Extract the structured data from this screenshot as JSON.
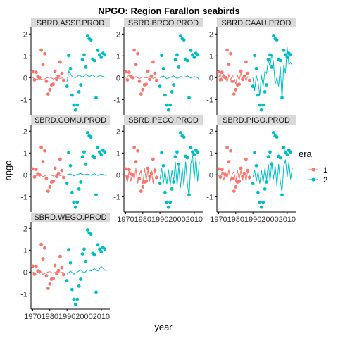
{
  "chart_data": {
    "type": "scatter",
    "title": "NPGO: Region Farallon seabirds",
    "xlabel": "year",
    "ylabel": "npgo",
    "xlim": [
      1969,
      2015
    ],
    "ylim": [
      -1.7,
      2.3
    ],
    "x_ticks": [
      1970,
      1980,
      1990,
      2000,
      2010
    ],
    "y_ticks": [
      -1,
      0,
      1,
      2
    ],
    "legend": {
      "title": "era",
      "position": "right",
      "entries": [
        {
          "label": "1",
          "color": "#F8766D"
        },
        {
          "label": "2",
          "color": "#00BFC4"
        }
      ]
    },
    "colors": {
      "era1": "#F8766D",
      "era2": "#00BFC4",
      "strip": "#D9D9D9"
    },
    "points": {
      "era1": [
        [
          1970,
          0.27
        ],
        [
          1971,
          -0.1
        ],
        [
          1972,
          0.25
        ],
        [
          1973,
          0.05
        ],
        [
          1974,
          0.0
        ],
        [
          1975,
          1.26
        ],
        [
          1976,
          0.6
        ],
        [
          1977,
          1.1
        ],
        [
          1978,
          -0.17
        ],
        [
          1979,
          -0.75
        ],
        [
          1980,
          -0.55
        ],
        [
          1981,
          -0.33
        ],
        [
          1982,
          -0.3
        ],
        [
          1983,
          0.3
        ],
        [
          1984,
          -0.08
        ],
        [
          1985,
          0.07
        ],
        [
          1986,
          0.72
        ],
        [
          1987,
          0.2
        ],
        [
          1988,
          -0.12
        ]
      ],
      "era2": [
        [
          1990,
          -0.4
        ],
        [
          1991,
          1.02
        ],
        [
          1992,
          0.42
        ],
        [
          1993,
          -0.8
        ],
        [
          1994,
          -1.25
        ],
        [
          1995,
          -1.48
        ],
        [
          1996,
          -1.25
        ],
        [
          1997,
          -0.65
        ],
        [
          1998,
          -0.33
        ],
        [
          1999,
          0.83
        ],
        [
          2000,
          1.05
        ],
        [
          2001,
          0.48
        ],
        [
          2002,
          1.93
        ],
        [
          2003,
          1.78
        ],
        [
          2004,
          1.73
        ],
        [
          2005,
          0.85
        ],
        [
          2006,
          0.78
        ],
        [
          2007,
          -0.92
        ],
        [
          2008,
          1.25
        ],
        [
          2009,
          1.05
        ],
        [
          2010,
          0.93
        ],
        [
          2011,
          1.12
        ],
        [
          2012,
          1.05
        ]
      ]
    },
    "panels": [
      {
        "label": "SBRD.ASSP.PROD",
        "line1": [
          [
            1970,
            0.0
          ],
          [
            1972,
            -0.08
          ],
          [
            1974,
            -0.05
          ],
          [
            1976,
            -0.1
          ],
          [
            1978,
            -0.02
          ],
          [
            1980,
            0.02
          ],
          [
            1982,
            -0.06
          ],
          [
            1984,
            0.01
          ],
          [
            1986,
            -0.04
          ],
          [
            1988,
            0.0
          ]
        ],
        "line2": [
          [
            1990,
            -0.2
          ],
          [
            1991,
            0.3
          ],
          [
            1993,
            0.05
          ],
          [
            1995,
            0.0
          ],
          [
            1997,
            0.12
          ],
          [
            1999,
            0.02
          ],
          [
            2001,
            0.15
          ],
          [
            2003,
            0.05
          ],
          [
            2005,
            0.12
          ],
          [
            2007,
            0.0
          ],
          [
            2009,
            0.1
          ],
          [
            2011,
            0.05
          ],
          [
            2013,
            0.0
          ]
        ]
      },
      {
        "label": "SBRD.BRCO.PROD",
        "line1": [
          [
            1970,
            0.0
          ],
          [
            1972,
            0.1
          ],
          [
            1974,
            -0.05
          ],
          [
            1976,
            0.05
          ],
          [
            1978,
            -0.05
          ],
          [
            1980,
            0.03
          ],
          [
            1982,
            -0.02
          ],
          [
            1984,
            0.04
          ],
          [
            1986,
            -0.03
          ],
          [
            1988,
            0.0
          ]
        ],
        "line2": [
          [
            1990,
            0.0
          ],
          [
            1992,
            0.08
          ],
          [
            1994,
            -0.05
          ],
          [
            1996,
            0.02
          ],
          [
            1998,
            0.08
          ],
          [
            2000,
            -0.04
          ],
          [
            2002,
            0.05
          ],
          [
            2004,
            0.02
          ],
          [
            2006,
            0.08
          ],
          [
            2008,
            -0.02
          ],
          [
            2010,
            0.05
          ],
          [
            2012,
            0.0
          ],
          [
            2013,
            -0.1
          ]
        ]
      },
      {
        "label": "SBRD.CAAU.PROD",
        "line1": [
          [
            1970,
            0.0
          ],
          [
            1971,
            0.2
          ],
          [
            1972,
            -0.15
          ],
          [
            1973,
            0.15
          ],
          [
            1974,
            0.0
          ],
          [
            1975,
            -0.2
          ],
          [
            1976,
            0.15
          ],
          [
            1977,
            -0.1
          ],
          [
            1978,
            0.1
          ],
          [
            1979,
            0.0
          ],
          [
            1980,
            -0.3
          ],
          [
            1981,
            0.1
          ],
          [
            1982,
            -0.1
          ],
          [
            1983,
            0.2
          ],
          [
            1984,
            -0.05
          ],
          [
            1985,
            0.1
          ],
          [
            1986,
            -0.15
          ],
          [
            1987,
            0.05
          ],
          [
            1988,
            0.0
          ]
        ],
        "line2": [
          [
            1990,
            0.0
          ],
          [
            1991,
            -0.6
          ],
          [
            1992,
            0.1
          ],
          [
            1993,
            -0.2
          ],
          [
            1994,
            -0.8
          ],
          [
            1995,
            0.1
          ],
          [
            1996,
            -0.4
          ],
          [
            1997,
            0.3
          ],
          [
            1998,
            0.2
          ],
          [
            1999,
            0.8
          ],
          [
            2000,
            0.5
          ],
          [
            2001,
            1.1
          ],
          [
            2002,
            0.7
          ],
          [
            2003,
            -0.3
          ],
          [
            2004,
            0.0
          ],
          [
            2005,
            -0.4
          ],
          [
            2006,
            0.5
          ],
          [
            2007,
            -1.0
          ],
          [
            2008,
            0.6
          ],
          [
            2009,
            0.2
          ],
          [
            2010,
            1.4
          ],
          [
            2011,
            0.6
          ],
          [
            2012,
            0.7
          ],
          [
            2013,
            0.55
          ]
        ]
      },
      {
        "label": "SBRD.COMU.PROD",
        "line1": [
          [
            1970,
            0.0
          ],
          [
            1972,
            -0.05
          ],
          [
            1974,
            0.02
          ],
          [
            1976,
            -0.08
          ],
          [
            1978,
            -0.02
          ],
          [
            1980,
            0.0
          ],
          [
            1982,
            -0.05
          ],
          [
            1984,
            0.02
          ],
          [
            1986,
            -0.04
          ],
          [
            1988,
            0.0
          ]
        ],
        "line2": [
          [
            1990,
            0.0
          ],
          [
            1992,
            0.05
          ],
          [
            1994,
            -0.05
          ],
          [
            1996,
            0.02
          ],
          [
            1998,
            0.06
          ],
          [
            2000,
            0.0
          ],
          [
            2002,
            0.04
          ],
          [
            2004,
            -0.02
          ],
          [
            2006,
            0.05
          ],
          [
            2008,
            -0.03
          ],
          [
            2010,
            0.04
          ],
          [
            2012,
            0.0
          ],
          [
            2013,
            -0.05
          ]
        ]
      },
      {
        "label": "SBRD.PECO.PROD",
        "line1": [
          [
            1970,
            0.0
          ],
          [
            1971,
            -0.35
          ],
          [
            1972,
            0.2
          ],
          [
            1973,
            -0.3
          ],
          [
            1974,
            0.1
          ],
          [
            1975,
            -0.2
          ],
          [
            1976,
            0.3
          ],
          [
            1977,
            -0.4
          ],
          [
            1978,
            0.0
          ],
          [
            1979,
            0.2
          ],
          [
            1980,
            -0.45
          ],
          [
            1981,
            0.3
          ],
          [
            1982,
            -0.25
          ],
          [
            1983,
            0.25
          ],
          [
            1984,
            -0.3
          ],
          [
            1985,
            0.2
          ],
          [
            1986,
            -0.4
          ],
          [
            1987,
            0.3
          ],
          [
            1988,
            -0.1
          ]
        ],
        "line2": [
          [
            1990,
            -0.2
          ],
          [
            1991,
            0.3
          ],
          [
            1992,
            -0.4
          ],
          [
            1993,
            0.2
          ],
          [
            1994,
            -0.45
          ],
          [
            1995,
            0.25
          ],
          [
            1996,
            -0.5
          ],
          [
            1997,
            0.2
          ],
          [
            1998,
            -0.3
          ],
          [
            1999,
            0.6
          ],
          [
            2000,
            -0.5
          ],
          [
            2001,
            0.4
          ],
          [
            2002,
            -0.6
          ],
          [
            2003,
            0.3
          ],
          [
            2004,
            -0.5
          ],
          [
            2005,
            0.6
          ],
          [
            2006,
            -0.4
          ],
          [
            2007,
            -1.0
          ],
          [
            2008,
            0.5
          ],
          [
            2009,
            0.9
          ],
          [
            2010,
            -0.2
          ],
          [
            2011,
            0.8
          ],
          [
            2012,
            -0.3
          ],
          [
            2013,
            0.6
          ]
        ]
      },
      {
        "label": "SBRD.PIGO.PROD",
        "line1": [
          [
            1970,
            0.0
          ],
          [
            1971,
            -0.2
          ],
          [
            1972,
            0.15
          ],
          [
            1973,
            -0.25
          ],
          [
            1974,
            0.1
          ],
          [
            1975,
            -0.15
          ],
          [
            1976,
            0.25
          ],
          [
            1977,
            -0.3
          ],
          [
            1978,
            0.05
          ],
          [
            1979,
            0.15
          ],
          [
            1980,
            -0.35
          ],
          [
            1981,
            0.2
          ],
          [
            1982,
            -0.2
          ],
          [
            1983,
            0.2
          ],
          [
            1984,
            -0.25
          ],
          [
            1985,
            0.15
          ],
          [
            1986,
            -0.3
          ],
          [
            1987,
            0.2
          ],
          [
            1988,
            -0.05
          ]
        ],
        "line2": [
          [
            1990,
            -0.1
          ],
          [
            1991,
            0.2
          ],
          [
            1992,
            -0.3
          ],
          [
            1993,
            0.15
          ],
          [
            1994,
            -0.4
          ],
          [
            1995,
            0.2
          ],
          [
            1996,
            -0.35
          ],
          [
            1997,
            0.3
          ],
          [
            1998,
            -0.25
          ],
          [
            1999,
            0.5
          ],
          [
            2000,
            -0.3
          ],
          [
            2001,
            0.6
          ],
          [
            2002,
            -0.2
          ],
          [
            2003,
            0.4
          ],
          [
            2004,
            -0.5
          ],
          [
            2005,
            0.5
          ],
          [
            2006,
            -0.3
          ],
          [
            2007,
            -0.8
          ],
          [
            2008,
            0.4
          ],
          [
            2009,
            0.7
          ],
          [
            2010,
            -0.1
          ],
          [
            2011,
            0.6
          ],
          [
            2012,
            -0.2
          ],
          [
            2013,
            0.3
          ]
        ]
      },
      {
        "label": "SBRD.WEGO.PROD",
        "line1": [
          [
            1970,
            0.0
          ],
          [
            1972,
            -0.05
          ],
          [
            1974,
            0.03
          ],
          [
            1976,
            -0.1
          ],
          [
            1978,
            -0.03
          ],
          [
            1980,
            0.02
          ],
          [
            1982,
            -0.05
          ],
          [
            1984,
            0.02
          ],
          [
            1986,
            -0.03
          ],
          [
            1988,
            0.0
          ]
        ],
        "line2": [
          [
            1990,
            -0.1
          ],
          [
            1992,
            0.05
          ],
          [
            1994,
            -0.1
          ],
          [
            1996,
            0.0
          ],
          [
            1998,
            0.1
          ],
          [
            2000,
            -0.05
          ],
          [
            2002,
            0.1
          ],
          [
            2004,
            0.05
          ],
          [
            2006,
            0.15
          ],
          [
            2008,
            0.05
          ],
          [
            2010,
            0.25
          ],
          [
            2012,
            0.1
          ],
          [
            2013,
            0.05
          ]
        ]
      }
    ]
  }
}
